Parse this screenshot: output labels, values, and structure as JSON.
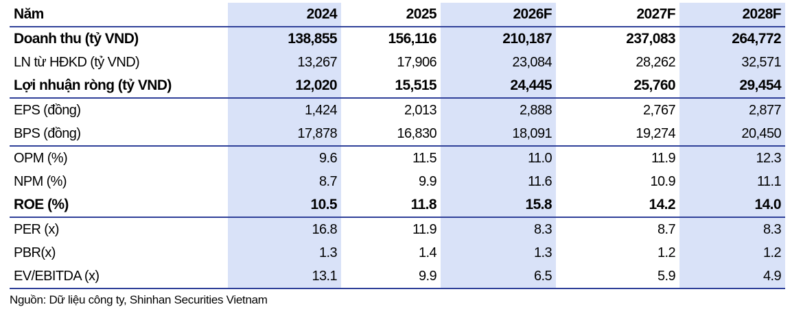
{
  "table": {
    "columns": [
      "Năm",
      "2024",
      "2025",
      "2026F",
      "2027F",
      "2028F"
    ],
    "rows": [
      [
        "Doanh thu (tỷ VND)",
        "138,855",
        "156,116",
        "210,187",
        "237,083",
        "264,772"
      ],
      [
        "LN từ HĐKD (tỷ VND)",
        "13,267",
        "17,906",
        "23,084",
        "28,262",
        "32,571"
      ],
      [
        "Lợi nhuận ròng (tỷ VND)",
        "12,020",
        "15,515",
        "24,445",
        "25,760",
        "29,454"
      ],
      [
        "EPS (đồng)",
        "1,424",
        "2,013",
        "2,888",
        "2,767",
        "2,877"
      ],
      [
        "BPS (đồng)",
        "17,878",
        "16,830",
        "18,091",
        "19,274",
        "20,450"
      ],
      [
        "OPM (%)",
        "9.6",
        "11.5",
        "11.0",
        "11.9",
        "12.3"
      ],
      [
        "NPM (%)",
        "8.7",
        "9.9",
        "11.6",
        "10.9",
        "11.1"
      ],
      [
        "ROE (%)",
        "10.5",
        "11.8",
        "15.8",
        "14.2",
        "14.0"
      ],
      [
        "PER (x)",
        "16.8",
        "11.9",
        "8.3",
        "8.7",
        "8.3"
      ],
      [
        "PBR(x)",
        "1.3",
        "1.4",
        "1.3",
        "1.2",
        "1.2"
      ],
      [
        "EV/EBITDA (x)",
        "13.1",
        "9.9",
        "6.5",
        "5.9",
        "4.9"
      ]
    ]
  },
  "source": "Nguồn: Dữ liệu công ty, Shinhan Securities Vietnam"
}
